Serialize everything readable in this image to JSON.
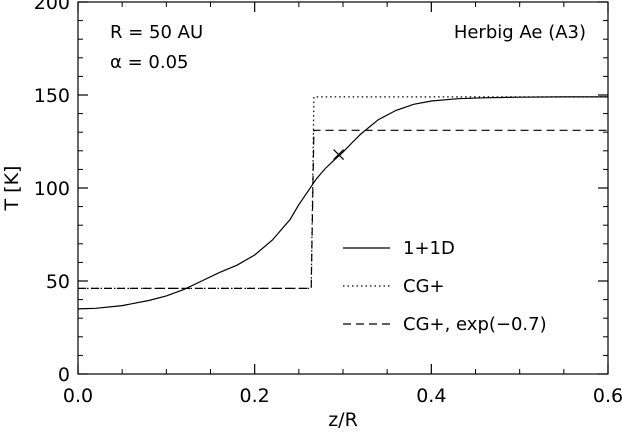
{
  "chart_data": {
    "type": "line",
    "xlabel": "z/R",
    "ylabel": "T [K]",
    "xlim": [
      0.0,
      0.6
    ],
    "ylim": [
      0,
      200
    ],
    "x_ticks": [
      "0.0",
      "0.2",
      "0.4",
      "0.6"
    ],
    "y_ticks": [
      "0",
      "50",
      "100",
      "150",
      "200"
    ],
    "x_tick_values": [
      0.0,
      0.2,
      0.4,
      0.6
    ],
    "y_tick_values": [
      0,
      50,
      100,
      150,
      200
    ],
    "grid": false,
    "legend_position": "center-right",
    "annotations": {
      "radius": "R = 50 AU",
      "alpha": "α = 0.05",
      "star": "Herbig Ae (A3)"
    },
    "series": [
      {
        "name": "1+1D",
        "style": "solid",
        "x": [
          0.0,
          0.02,
          0.05,
          0.08,
          0.1,
          0.12,
          0.14,
          0.16,
          0.18,
          0.2,
          0.22,
          0.24,
          0.25,
          0.26,
          0.27,
          0.28,
          0.29,
          0.3,
          0.31,
          0.32,
          0.34,
          0.36,
          0.38,
          0.4,
          0.43,
          0.46,
          0.5,
          0.55,
          0.6
        ],
        "y": [
          35,
          35.3,
          36.8,
          39.5,
          42,
          45.5,
          50,
          54.5,
          58.5,
          64,
          72,
          83,
          91,
          98,
          105,
          110.5,
          115,
          119.3,
          124.2,
          129,
          136.7,
          141.7,
          145,
          146.8,
          148,
          148.5,
          148.8,
          149,
          149
        ]
      },
      {
        "name": "CG+",
        "style": "dotted",
        "x": [
          0.0,
          0.264,
          0.267,
          0.6
        ],
        "y": [
          46,
          46,
          149,
          149
        ]
      },
      {
        "name": "CG+, exp(−0.7)",
        "style": "dashed",
        "x": [
          0.0,
          0.264,
          0.267,
          0.6
        ],
        "y": [
          46,
          46,
          131,
          131
        ]
      }
    ],
    "marker": {
      "x": 0.295,
      "y": 118,
      "symbol": "x"
    }
  }
}
